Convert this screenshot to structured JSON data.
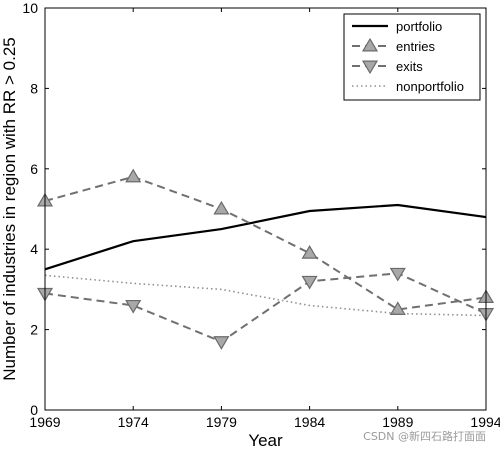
{
  "chart_data": {
    "type": "line",
    "x": [
      1969,
      1974,
      1979,
      1984,
      1989,
      1994
    ],
    "xlabel": "Year",
    "ylabel": "Number of industries in region with RR > 0.25",
    "xlim": [
      1969,
      1994
    ],
    "ylim": [
      0,
      10
    ],
    "xticks": [
      "1969",
      "1974",
      "1979",
      "1984",
      "1989",
      "1994"
    ],
    "yticks": [
      "0",
      "2",
      "4",
      "6",
      "8",
      "10"
    ],
    "grid": false,
    "legend_position": "top-right",
    "series": [
      {
        "name": "portfolio",
        "values": [
          3.5,
          4.2,
          4.5,
          4.95,
          5.1,
          4.8
        ],
        "color": "#000000",
        "style": "solid",
        "marker": "none"
      },
      {
        "name": "entries",
        "values": [
          5.2,
          5.8,
          5.0,
          3.9,
          2.5,
          2.8
        ],
        "color": "#707070",
        "style": "dashed",
        "marker": "triangle-up"
      },
      {
        "name": "exits",
        "values": [
          2.9,
          2.6,
          1.7,
          3.2,
          3.4,
          2.4
        ],
        "color": "#707070",
        "style": "dashed",
        "marker": "triangle-down"
      },
      {
        "name": "nonportfolio",
        "values": [
          3.35,
          3.15,
          3.0,
          2.6,
          2.4,
          2.35
        ],
        "color": "#909090",
        "style": "dotted",
        "marker": "none"
      }
    ]
  },
  "watermark": "CSDN @新四石路打面面"
}
